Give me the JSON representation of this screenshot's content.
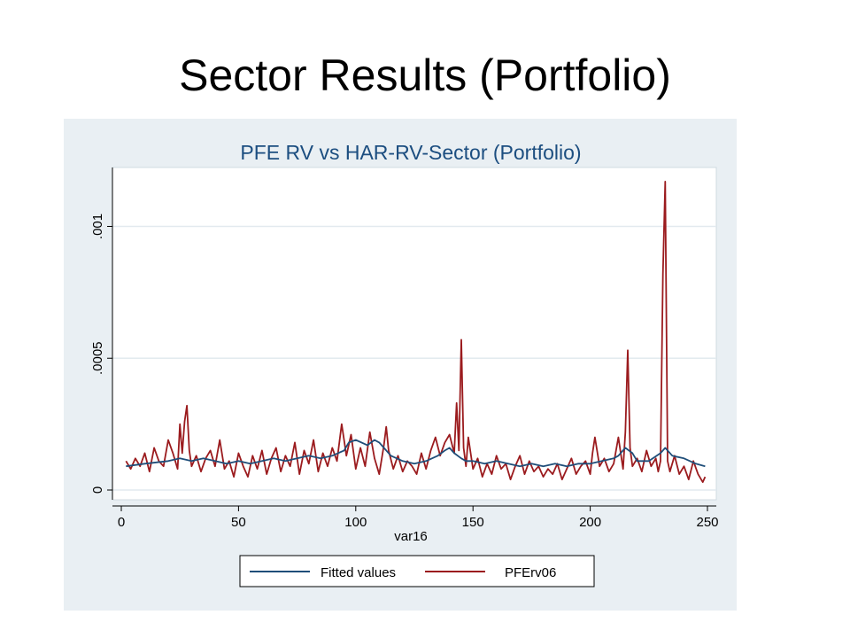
{
  "slide": {
    "title": "Sector Results (Portfolio)"
  },
  "colors": {
    "fitted": "#1f4e79",
    "actual": "#9b1b1e",
    "panel_bg": "#e9eff3",
    "plot_bg": "#ffffff",
    "title": "#1c4e80",
    "grid": "#e2eaef"
  },
  "chart_data": {
    "type": "line",
    "title": "PFE RV vs HAR-RV-Sector (Portfolio)",
    "xlabel": "var16",
    "ylabel": "",
    "xlim": [
      0,
      250
    ],
    "ylim": [
      0,
      0.0012
    ],
    "x_ticks": [
      0,
      50,
      100,
      150,
      200,
      250
    ],
    "x_tick_labels": [
      "0",
      "50",
      "100",
      "150",
      "200",
      "250"
    ],
    "y_ticks": [
      0,
      0.0005,
      0.001
    ],
    "y_tick_labels": [
      "0",
      ".0005",
      ".001"
    ],
    "grid": true,
    "legend_position": "bottom",
    "series": [
      {
        "name": "Fitted values",
        "color": "#1f4e79",
        "x": [
          2,
          10,
          20,
          25,
          30,
          35,
          40,
          45,
          50,
          55,
          60,
          65,
          70,
          75,
          80,
          85,
          90,
          95,
          97,
          100,
          105,
          108,
          110,
          112,
          115,
          120,
          125,
          130,
          135,
          138,
          140,
          142,
          145,
          147,
          150,
          155,
          160,
          165,
          170,
          175,
          180,
          185,
          190,
          195,
          200,
          205,
          210,
          212,
          215,
          218,
          220,
          225,
          230,
          232,
          235,
          240,
          245,
          249
        ],
        "y": [
          9e-05,
          0.0001,
          0.00011,
          0.00012,
          0.00011,
          0.00012,
          0.00011,
          0.0001,
          0.00011,
          0.0001,
          0.00011,
          0.00012,
          0.00011,
          0.00012,
          0.00013,
          0.00012,
          0.00013,
          0.00015,
          0.00018,
          0.00019,
          0.00017,
          0.00019,
          0.00018,
          0.00016,
          0.00013,
          0.00011,
          0.0001,
          0.00011,
          0.00013,
          0.00015,
          0.00016,
          0.00014,
          0.00012,
          0.00011,
          0.00011,
          0.0001,
          0.00011,
          0.0001,
          9e-05,
          0.0001,
          9e-05,
          0.0001,
          9e-05,
          0.0001,
          0.0001,
          0.00011,
          0.00012,
          0.00013,
          0.00016,
          0.00014,
          0.00011,
          0.00011,
          0.00014,
          0.00016,
          0.00013,
          0.00012,
          0.0001,
          9e-05
        ]
      },
      {
        "name": "PFErv06",
        "color": "#9b1b1e",
        "x": [
          2,
          4,
          6,
          8,
          10,
          12,
          14,
          16,
          18,
          20,
          22,
          24,
          25,
          26,
          27,
          28,
          29,
          30,
          32,
          34,
          36,
          38,
          40,
          42,
          44,
          46,
          48,
          50,
          52,
          54,
          56,
          58,
          60,
          62,
          64,
          66,
          68,
          70,
          72,
          74,
          76,
          78,
          80,
          82,
          84,
          86,
          88,
          90,
          92,
          94,
          95,
          96,
          98,
          100,
          102,
          104,
          106,
          108,
          110,
          112,
          113,
          114,
          116,
          118,
          120,
          122,
          124,
          126,
          128,
          130,
          132,
          134,
          136,
          138,
          140,
          142,
          143,
          144,
          145,
          146,
          147,
          148,
          150,
          152,
          154,
          156,
          158,
          160,
          162,
          164,
          166,
          168,
          170,
          172,
          174,
          176,
          178,
          180,
          182,
          184,
          186,
          188,
          190,
          192,
          194,
          196,
          198,
          200,
          201,
          202,
          204,
          206,
          208,
          210,
          212,
          214,
          215,
          216,
          217,
          218,
          220,
          222,
          224,
          226,
          228,
          229,
          230,
          231,
          232,
          233,
          234,
          236,
          238,
          240,
          242,
          244,
          246,
          248,
          249
        ],
        "y": [
          0.00011,
          8e-05,
          0.00012,
          9e-05,
          0.00014,
          7e-05,
          0.00016,
          0.00011,
          9e-05,
          0.00019,
          0.00014,
          8e-05,
          0.00025,
          0.00014,
          0.00026,
          0.00032,
          0.00015,
          9e-05,
          0.00013,
          7e-05,
          0.00012,
          0.00015,
          9e-05,
          0.00019,
          8e-05,
          0.00011,
          5e-05,
          0.00014,
          9e-05,
          5e-05,
          0.00013,
          8e-05,
          0.00015,
          6e-05,
          0.00012,
          0.00016,
          7e-05,
          0.00013,
          9e-05,
          0.00018,
          6e-05,
          0.00015,
          0.0001,
          0.00019,
          7e-05,
          0.00014,
          9e-05,
          0.00016,
          0.00011,
          0.00025,
          0.00019,
          0.00013,
          0.00021,
          8e-05,
          0.00016,
          9e-05,
          0.00022,
          0.00012,
          6e-05,
          0.00017,
          0.00024,
          0.00015,
          8e-05,
          0.00013,
          7e-05,
          0.00011,
          9e-05,
          6e-05,
          0.00014,
          8e-05,
          0.00015,
          0.0002,
          0.00013,
          0.00018,
          0.00021,
          0.00014,
          0.00033,
          0.00015,
          0.00057,
          0.00016,
          9e-05,
          0.0002,
          8e-05,
          0.00012,
          5e-05,
          0.0001,
          6e-05,
          0.00013,
          8e-05,
          0.0001,
          4e-05,
          9e-05,
          0.00013,
          6e-05,
          0.00011,
          7e-05,
          9e-05,
          5e-05,
          8e-05,
          6e-05,
          0.0001,
          4e-05,
          8e-05,
          0.00012,
          6e-05,
          9e-05,
          0.00011,
          6e-05,
          0.00014,
          0.0002,
          9e-05,
          0.00012,
          7e-05,
          0.0001,
          0.0002,
          8e-05,
          0.00022,
          0.00053,
          0.00016,
          9e-05,
          0.00012,
          7e-05,
          0.00015,
          9e-05,
          0.00012,
          7e-05,
          0.00011,
          0.00082,
          0.00117,
          0.00011,
          7e-05,
          0.00013,
          6e-05,
          9e-05,
          4e-05,
          0.00011,
          6e-05,
          3e-05,
          5e-05
        ]
      }
    ]
  }
}
